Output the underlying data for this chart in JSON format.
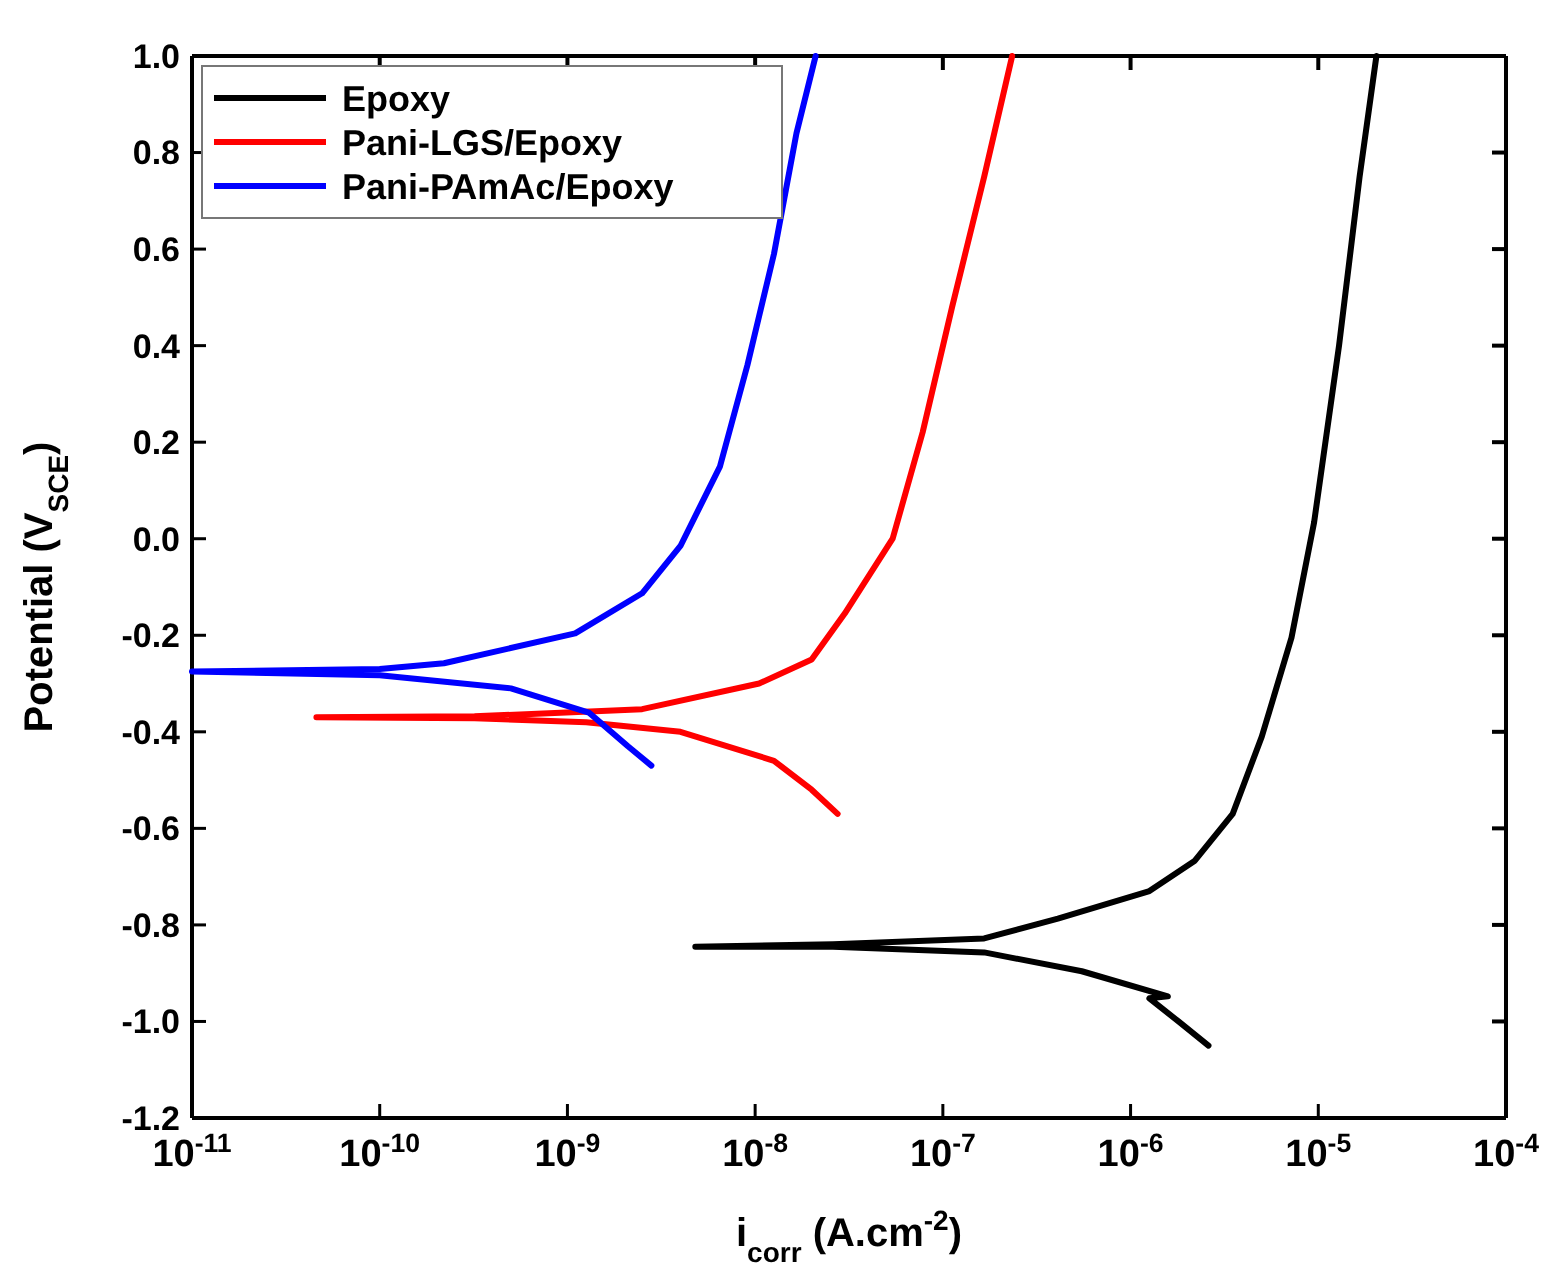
{
  "chart_data": {
    "type": "line",
    "xlabel": "i$_{corr}$ (A.cm$^{-2}$)",
    "ylabel": "Potential (V$_{SCE}$)",
    "log": "x",
    "legend": "top left",
    "line_style": "solid",
    "xlim": [
      1e-11,
      0.0001
    ],
    "xticks": [
      {
        "value": 1e-11,
        "label": "10$^{-11}$"
      },
      {
        "value": 1e-10,
        "label": "10$^{-10}$"
      },
      {
        "value": 1e-09,
        "label": "10$^{-9}$"
      },
      {
        "value": 1e-08,
        "label": "10$^{-8}$"
      },
      {
        "value": 1e-07,
        "label": "10$^{-7}$"
      },
      {
        "value": 1e-06,
        "label": "10$^{-6}$"
      },
      {
        "value": 1e-05,
        "label": "10$^{-5}$"
      },
      {
        "value": 0.0001,
        "label": "10$^{-4}$"
      }
    ],
    "ylim": [
      -1.2,
      1.0
    ],
    "yticks": [
      {
        "value": -1.2,
        "label": "-1.2"
      },
      {
        "value": -1,
        "label": "-1.0"
      },
      {
        "value": -0.8,
        "label": "-0.8"
      },
      {
        "value": -0.6,
        "label": "-0.6"
      },
      {
        "value": -0.4,
        "label": "-0.4"
      },
      {
        "value": -0.2,
        "label": "-0.2"
      },
      {
        "value": 0,
        "label": "0.0"
      },
      {
        "value": 0.2,
        "label": "0.2"
      },
      {
        "value": 0.4,
        "label": "0.4"
      },
      {
        "value": 0.6,
        "label": "0.6"
      },
      {
        "value": 0.8,
        "label": "0.8"
      },
      {
        "value": 1,
        "label": "1.0"
      }
    ],
    "series": [
      {
        "name": "Epoxy",
        "color": "#000000",
        "x": [
          2.6e-06,
          1.8e-06,
          1.26e-06,
          1.58e-06,
          5.5e-07,
          1.66e-07,
          2.6e-08,
          4.8e-09,
          2.6e-08,
          1.66e-07,
          4.1e-07,
          1.26e-06,
          2.2e-06,
          3.5e-06,
          5e-06,
          7.2e-06,
          9.5e-06,
          1.29e-05,
          1.66e-05,
          2.04e-05
        ],
        "values": [
          -1.05,
          -1.0,
          -0.952,
          -0.948,
          -0.896,
          -0.857,
          -0.845,
          -0.845,
          -0.84,
          -0.828,
          -0.787,
          -0.73,
          -0.667,
          -0.57,
          -0.41,
          -0.205,
          0.034,
          0.4,
          0.75,
          1.0
        ]
      },
      {
        "name": "Pani-LGS/Epoxy",
        "color": "#ff0000",
        "x": [
          2.75e-08,
          2e-08,
          1.26e-08,
          4e-09,
          1.26e-09,
          3.2e-10,
          4.6e-11,
          3.2e-10,
          2.5e-09,
          1.05e-08,
          2e-08,
          3e-08,
          5.4e-08,
          7.8e-08,
          1.12e-07,
          1.66e-07,
          2.34e-07
        ],
        "values": [
          -0.57,
          -0.52,
          -0.46,
          -0.4,
          -0.38,
          -0.372,
          -0.37,
          -0.368,
          -0.353,
          -0.3,
          -0.25,
          -0.155,
          0.0,
          0.22,
          0.48,
          0.75,
          1.0
        ]
      },
      {
        "name": "Pani-PAmAc/Epoxy",
        "color": "#0000ff",
        "x": [
          2.8e-09,
          2.1e-09,
          1.3e-09,
          5e-10,
          1e-10,
          1e-11,
          1e-10,
          2.2e-10,
          1.1e-09,
          2.5e-09,
          4e-09,
          6.5e-09,
          9.1e-09,
          1.26e-08,
          1.66e-08,
          2.1e-08
        ],
        "values": [
          -0.47,
          -0.43,
          -0.36,
          -0.31,
          -0.283,
          -0.275,
          -0.27,
          -0.258,
          -0.196,
          -0.113,
          -0.015,
          0.15,
          0.36,
          0.59,
          0.84,
          1.0
        ]
      }
    ]
  }
}
